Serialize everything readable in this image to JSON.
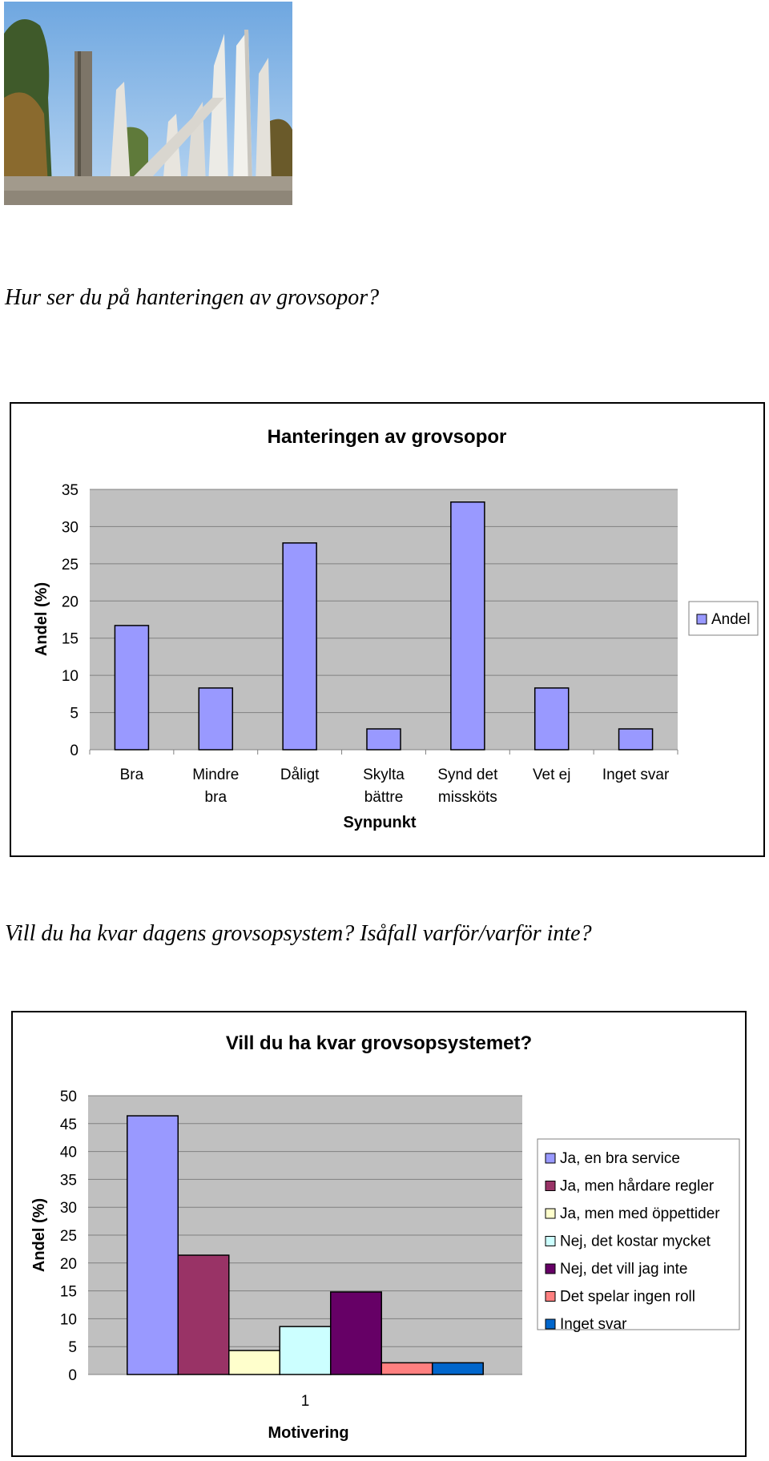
{
  "questions": {
    "q1": "Hur ser du på hanteringen av grovsopor?",
    "q2": "Vill du ha kvar dagens grovsopsystem? Isåfall varför/varför inte?"
  },
  "chart_data": [
    {
      "type": "bar",
      "title": "Hanteringen av grovsopor",
      "xlabel": "Synpunkt",
      "ylabel": "Andel (%)",
      "ylim": [
        0,
        35
      ],
      "yticks": [
        0,
        5,
        10,
        15,
        20,
        25,
        30,
        35
      ],
      "categories": [
        [
          "Bra"
        ],
        [
          "Mindre",
          "bra"
        ],
        [
          "Dåligt"
        ],
        [
          "Skylta",
          "bättre"
        ],
        [
          "Synd det",
          "missköts"
        ],
        [
          "Vet ej"
        ],
        [
          "Inget svar"
        ]
      ],
      "series": [
        {
          "name": "Andel",
          "values": [
            16.7,
            8.3,
            27.8,
            2.8,
            33.3,
            8.3,
            2.8
          ]
        }
      ],
      "colors": {
        "bar": "#9999ff",
        "plot_bg": "#c0c0c0"
      },
      "grid": true,
      "legend": "right"
    },
    {
      "type": "bar",
      "title": "Vill du ha kvar grovsopsystemet?",
      "xlabel": "Motivering",
      "ylabel": "Andel (%)",
      "ylim": [
        0,
        50
      ],
      "yticks": [
        0,
        5,
        10,
        15,
        20,
        25,
        30,
        35,
        40,
        45,
        50
      ],
      "categories": [
        "1"
      ],
      "series": [
        {
          "name": "Ja, en bra service",
          "values": [
            46.4
          ],
          "color": "#9999ff"
        },
        {
          "name": "Ja, men hårdare regler",
          "values": [
            21.4
          ],
          "color": "#993366"
        },
        {
          "name": "Ja, men med öppettider",
          "values": [
            4.3
          ],
          "color": "#ffffcc"
        },
        {
          "name": "Nej, det kostar mycket",
          "values": [
            8.6
          ],
          "color": "#ccffff"
        },
        {
          "name": "Nej, det vill jag inte",
          "values": [
            14.8
          ],
          "color": "#660066"
        },
        {
          "name": "Det spelar ingen roll",
          "values": [
            2.1
          ],
          "color": "#ff8080"
        },
        {
          "name": "Inget svar",
          "values": [
            2.1
          ],
          "color": "#0066cc"
        }
      ],
      "colors": {
        "plot_bg": "#c0c0c0"
      },
      "grid": true,
      "legend": "right"
    }
  ]
}
